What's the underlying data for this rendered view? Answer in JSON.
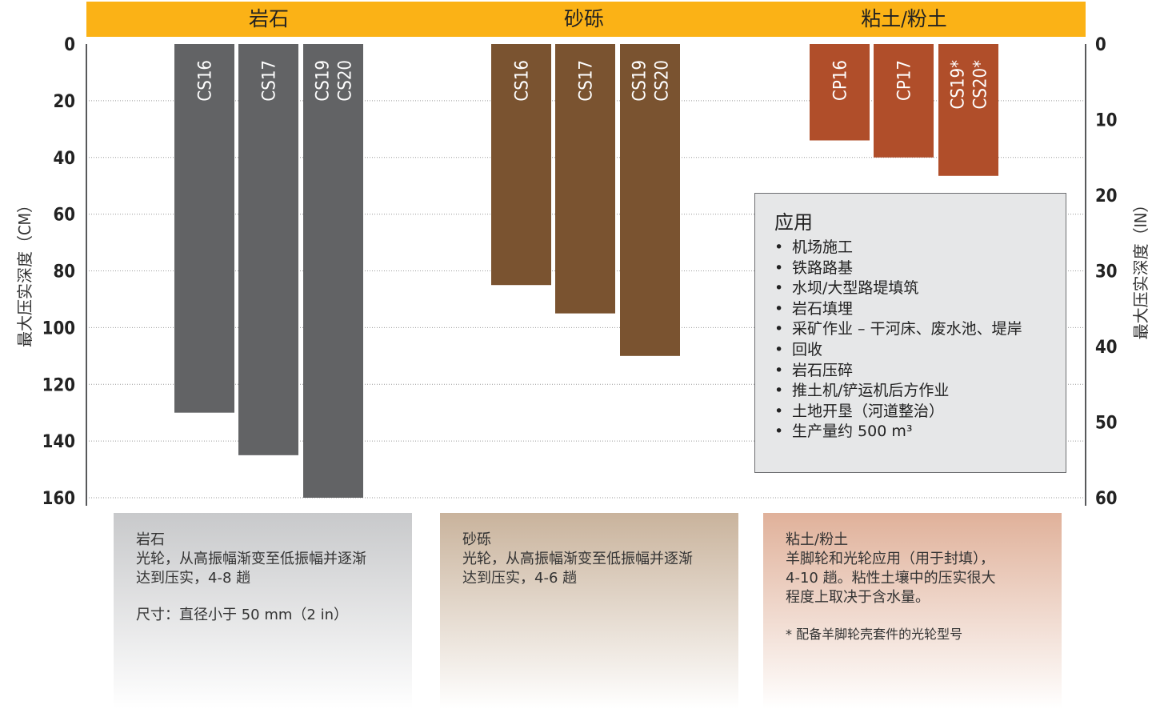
{
  "chart_data": {
    "type": "bar",
    "header_categories": [
      "岩石",
      "砂砾",
      "粘土/粉土"
    ],
    "groups": [
      {
        "name": "岩石",
        "color": "#626365",
        "bars": [
          {
            "label": "CS16",
            "value": 130
          },
          {
            "label": "CS17",
            "value": 145
          },
          {
            "label": "CS19\nCS20",
            "value": 160
          }
        ]
      },
      {
        "name": "砂砾",
        "color": "#7a5330",
        "bars": [
          {
            "label": "CS16",
            "value": 85
          },
          {
            "label": "CS17",
            "value": 95
          },
          {
            "label": "CS19\nCS20",
            "value": 110
          }
        ]
      },
      {
        "name": "粘土/粉土",
        "color": "#b04e2a",
        "bars": [
          {
            "label": "CP16",
            "value": 34
          },
          {
            "label": "CP17",
            "value": 40
          },
          {
            "label": "CS19*\nCS20*",
            "value": 46.5
          }
        ]
      }
    ],
    "left_axis": {
      "label": "最大压实深度（CM）",
      "ticks": [
        "0",
        "20",
        "40",
        "60",
        "80",
        "100",
        "120",
        "140",
        "160"
      ],
      "range": [
        0,
        160
      ]
    },
    "right_axis": {
      "label": "最大压实深度（IN）",
      "ticks": [
        "0",
        "10",
        "20",
        "30",
        "40",
        "50",
        "60"
      ],
      "range": [
        0,
        60
      ]
    },
    "grid": true,
    "header_color": "#fbb216"
  },
  "legend": {
    "title": "应用",
    "items": [
      "机场施工",
      "铁路路基",
      "水坝/大型路堤填筑",
      "岩石填埋",
      "采矿作业 – 干河床、废水池、堤岸",
      "回收",
      "岩石压碎",
      "推土机/铲运机后方作业",
      "土地开垦（河道整治）",
      "生产量约 500 m³"
    ]
  },
  "panels": {
    "rock": {
      "title": "岩石",
      "line1": "光轮，从高振幅渐变至低振幅并逐渐",
      "line2": "达到压实，4-8 趟",
      "line3": "尺寸：直径小于 50 mm（2 in）"
    },
    "gravel": {
      "title": "砂砾",
      "line1": "光轮，从高振幅渐变至低振幅并逐渐",
      "line2": "达到压实，4-6 趟"
    },
    "clay": {
      "title": "粘土/粉土",
      "line1": "羊脚轮和光轮应用（用于封填），",
      "line2": "4-10 趟。粘性土壤中的压实很大",
      "line3": "程度上取决于含水量。",
      "note": "* 配备羊脚轮壳套件的光轮型号"
    }
  }
}
